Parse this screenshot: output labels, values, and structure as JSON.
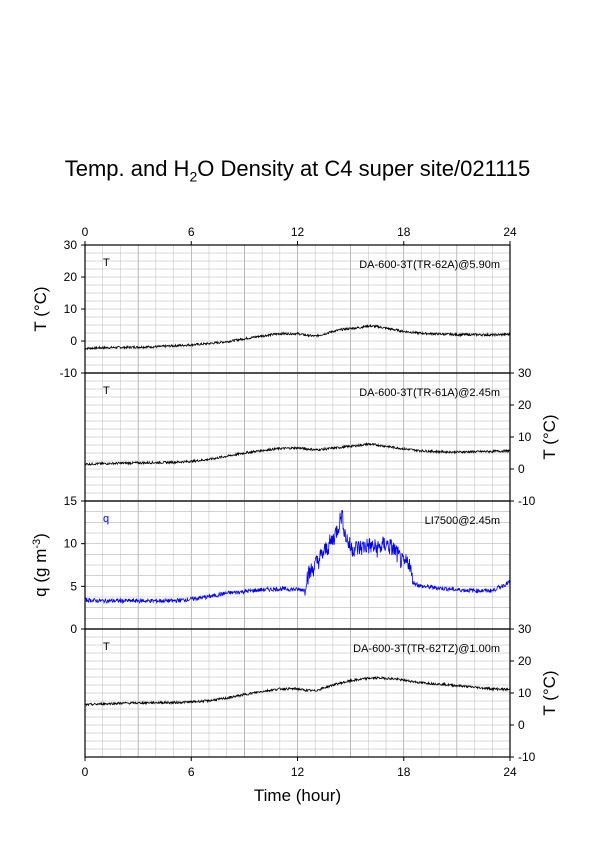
{
  "title": {
    "pre": "Temp. and H",
    "sub": "2",
    "post": "O Density at C4 super site/021115"
  },
  "colors": {
    "black": "#000000",
    "blue": "#0000ff",
    "grid": "#999999"
  },
  "chart_data": [
    {
      "type": "line",
      "panel": "top",
      "label": "T",
      "label_color": "#000000",
      "instrument": "DA-600-3T(TR-62A)@5.90m",
      "ylabel": "T (°C)",
      "yaxis_side": "left",
      "ylim": [
        -10,
        30
      ],
      "yticks": [
        "-10",
        "0",
        "10",
        "20",
        "30"
      ],
      "xtop_ticks": [
        "0",
        "6",
        "12",
        "18",
        "24"
      ],
      "series": [
        {
          "color": "#000000",
          "x": [
            0,
            1,
            2,
            3,
            4,
            5,
            6,
            7,
            8,
            9,
            10,
            11,
            12,
            12.5,
            13,
            13.5,
            14,
            14.5,
            15,
            15.5,
            16,
            16.5,
            17,
            17.5,
            18,
            19,
            20,
            21,
            22,
            23,
            24
          ],
          "y": [
            -2.3,
            -2.1,
            -2.0,
            -1.9,
            -1.8,
            -1.5,
            -1.2,
            -0.8,
            -0.2,
            0.7,
            1.6,
            2.3,
            2.3,
            1.8,
            1.5,
            2.2,
            3.0,
            3.6,
            3.9,
            4.2,
            4.7,
            4.5,
            4.0,
            3.5,
            3.0,
            2.4,
            2.2,
            2.0,
            2.0,
            1.9,
            2.1
          ]
        }
      ]
    },
    {
      "type": "line",
      "panel": "second",
      "label": "T",
      "label_color": "#000000",
      "instrument": "DA-600-3T(TR-61A)@2.45m",
      "ylabel": "T (°C)",
      "yaxis_side": "right",
      "ylim": [
        -10,
        30
      ],
      "yticks": [
        "-10",
        "0",
        "10",
        "20",
        "30"
      ],
      "series": [
        {
          "color": "#000000",
          "x": [
            0,
            1,
            2,
            3,
            4,
            5,
            6,
            7,
            8,
            9,
            10,
            11,
            12,
            12.5,
            13,
            13.5,
            14,
            14.5,
            15,
            15.5,
            16,
            16.5,
            17,
            17.5,
            18,
            19,
            20,
            21,
            22,
            23,
            24
          ],
          "y": [
            1.5,
            1.7,
            1.8,
            1.9,
            2.0,
            2.1,
            2.4,
            3.0,
            4.0,
            5.0,
            5.8,
            6.4,
            6.6,
            6.3,
            6.0,
            6.2,
            6.5,
            6.8,
            7.1,
            7.4,
            7.8,
            7.5,
            7.1,
            6.7,
            6.3,
            5.7,
            5.4,
            5.3,
            5.4,
            5.5,
            5.7
          ]
        }
      ]
    },
    {
      "type": "line",
      "panel": "third",
      "label": "q",
      "label_color": "#0000ff",
      "instrument": "LI7500@2.45m",
      "ylabel_pre": "q (g m",
      "ylabel_sup": "-3",
      "ylabel_post": ")",
      "yaxis_side": "left",
      "ylim": [
        0,
        15
      ],
      "yticks": [
        "0",
        "5",
        "10",
        "15"
      ],
      "series": [
        {
          "color": "#0000ff",
          "x": [
            0,
            1,
            2,
            3,
            4,
            5,
            6,
            7,
            8,
            9,
            10,
            11,
            12.4,
            12.5,
            13,
            13.5,
            14,
            14.3,
            14.5,
            14.7,
            15,
            15.5,
            16,
            16.5,
            17,
            17.5,
            18,
            18.3,
            18.5,
            19,
            20,
            21,
            22,
            23,
            24
          ],
          "y": [
            3.4,
            3.3,
            3.3,
            3.3,
            3.3,
            3.3,
            3.5,
            3.8,
            4.2,
            4.4,
            4.6,
            4.7,
            4.6,
            6.0,
            7.5,
            9.0,
            10.5,
            12.0,
            13.5,
            11.0,
            9.5,
            9.5,
            9.8,
            9.4,
            10.0,
            9.2,
            7.5,
            8.0,
            5.5,
            5.0,
            4.8,
            4.6,
            4.5,
            4.5,
            5.5
          ]
        }
      ]
    },
    {
      "type": "line",
      "panel": "bottom",
      "label": "T",
      "label_color": "#000000",
      "instrument": "DA-600-3T(TR-62TZ)@1.00m",
      "ylabel": "T (°C)",
      "yaxis_side": "right",
      "ylim": [
        -10,
        30
      ],
      "yticks": [
        "-10",
        "0",
        "10",
        "20",
        "30"
      ],
      "xticks": [
        "0",
        "6",
        "12",
        "18",
        "24"
      ],
      "xlabel": "Time (hour)",
      "series": [
        {
          "color": "#000000",
          "x": [
            0,
            1,
            2,
            3,
            4,
            5,
            6,
            7,
            8,
            9,
            10,
            11,
            12,
            12.5,
            13,
            13.5,
            14,
            14.5,
            15,
            15.5,
            16,
            16.5,
            17,
            17.5,
            18,
            19,
            20,
            21,
            22,
            23,
            24
          ],
          "y": [
            6.3,
            6.6,
            6.8,
            6.9,
            7.0,
            7.0,
            7.2,
            7.6,
            8.4,
            9.5,
            10.5,
            11.3,
            11.3,
            10.8,
            10.7,
            11.6,
            12.5,
            13.2,
            13.8,
            14.2,
            14.6,
            14.7,
            14.6,
            14.4,
            14.0,
            13.2,
            12.8,
            12.3,
            11.8,
            11.3,
            11.1
          ]
        }
      ]
    }
  ]
}
